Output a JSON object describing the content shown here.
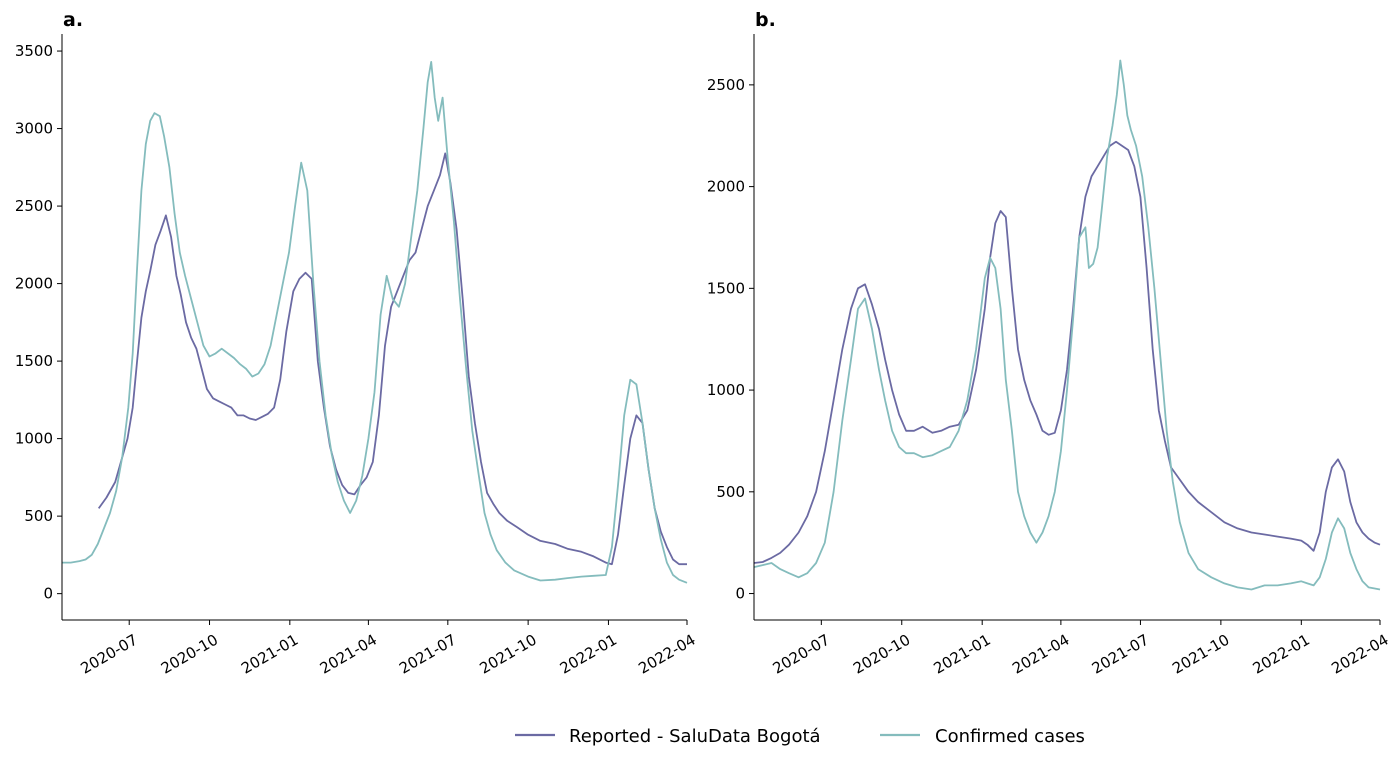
{
  "legend": {
    "placement": "bottom-center",
    "entries": [
      {
        "label": "Reported - SaluData Bogotá",
        "color": "#6b6aa3"
      },
      {
        "label": "Confirmed cases",
        "color": "#84bcbd"
      }
    ]
  },
  "chart_data": [
    {
      "type": "line",
      "panel_label": "a.",
      "x_type": "date",
      "xlim": [
        "2020-04-15",
        "2022-04-01"
      ],
      "ylim": [
        -170,
        3610
      ],
      "x_ticks": [
        "2020-07",
        "2020-10",
        "2021-01",
        "2021-04",
        "2021-07",
        "2021-10",
        "2022-01",
        "2022-04"
      ],
      "y_ticks": [
        0,
        500,
        1000,
        1500,
        2000,
        2500,
        3000,
        3500
      ],
      "grid": false,
      "series": [
        {
          "name": "Reported - SaluData Bogotá",
          "color": "#6b6aa3",
          "x": [
            "2020-05-27",
            "2020-06-05",
            "2020-06-15",
            "2020-06-22",
            "2020-06-29",
            "2020-07-05",
            "2020-07-10",
            "2020-07-15",
            "2020-07-20",
            "2020-07-25",
            "2020-07-31",
            "2020-08-06",
            "2020-08-12",
            "2020-08-18",
            "2020-08-24",
            "2020-08-29",
            "2020-09-04",
            "2020-09-10",
            "2020-09-16",
            "2020-09-22",
            "2020-09-28",
            "2020-10-05",
            "2020-10-12",
            "2020-10-19",
            "2020-10-26",
            "2020-11-02",
            "2020-11-09",
            "2020-11-16",
            "2020-11-23",
            "2020-11-30",
            "2020-12-07",
            "2020-12-14",
            "2020-12-21",
            "2020-12-28",
            "2021-01-05",
            "2021-01-12",
            "2021-01-19",
            "2021-01-26",
            "2021-02-02",
            "2021-02-09",
            "2021-02-16",
            "2021-02-23",
            "2021-03-02",
            "2021-03-09",
            "2021-03-16",
            "2021-03-23",
            "2021-03-30",
            "2021-04-06",
            "2021-04-13",
            "2021-04-20",
            "2021-04-27",
            "2021-05-04",
            "2021-05-11",
            "2021-05-18",
            "2021-05-25",
            "2021-06-01",
            "2021-06-08",
            "2021-06-15",
            "2021-06-22",
            "2021-06-28",
            "2021-07-04",
            "2021-07-11",
            "2021-07-18",
            "2021-07-25",
            "2021-08-01",
            "2021-08-08",
            "2021-08-15",
            "2021-08-22",
            "2021-08-29",
            "2021-09-07",
            "2021-09-18",
            "2021-10-01",
            "2021-10-15",
            "2021-11-01",
            "2021-11-15",
            "2021-12-01",
            "2021-12-15",
            "2021-12-29",
            "2022-01-05",
            "2022-01-12",
            "2022-01-19",
            "2022-01-26",
            "2022-02-02",
            "2022-02-09",
            "2022-02-16",
            "2022-02-23",
            "2022-03-02",
            "2022-03-09",
            "2022-03-16",
            "2022-03-23",
            "2022-04-01"
          ],
          "y": [
            550,
            620,
            720,
            860,
            1000,
            1200,
            1500,
            1780,
            1950,
            2080,
            2250,
            2340,
            2440,
            2300,
            2050,
            1930,
            1750,
            1650,
            1580,
            1450,
            1320,
            1260,
            1240,
            1220,
            1200,
            1150,
            1150,
            1130,
            1120,
            1140,
            1160,
            1200,
            1380,
            1690,
            1950,
            2030,
            2070,
            2030,
            1500,
            1200,
            950,
            800,
            700,
            650,
            640,
            700,
            750,
            850,
            1150,
            1600,
            1850,
            1950,
            2050,
            2150,
            2200,
            2350,
            2500,
            2600,
            2700,
            2840,
            2650,
            2350,
            1900,
            1400,
            1100,
            850,
            650,
            580,
            520,
            470,
            430,
            380,
            340,
            320,
            290,
            270,
            240,
            200,
            190,
            380,
            700,
            1000,
            1150,
            1100,
            800,
            550,
            400,
            300,
            220,
            190,
            190
          ]
        },
        {
          "name": "Confirmed cases",
          "color": "#84bcbd",
          "x": [
            "2020-04-15",
            "2020-04-25",
            "2020-05-05",
            "2020-05-12",
            "2020-05-19",
            "2020-05-26",
            "2020-06-02",
            "2020-06-09",
            "2020-06-16",
            "2020-06-23",
            "2020-06-30",
            "2020-07-05",
            "2020-07-10",
            "2020-07-15",
            "2020-07-20",
            "2020-07-25",
            "2020-07-30",
            "2020-08-05",
            "2020-08-10",
            "2020-08-16",
            "2020-08-22",
            "2020-08-28",
            "2020-09-03",
            "2020-09-10",
            "2020-09-17",
            "2020-09-24",
            "2020-10-01",
            "2020-10-08",
            "2020-10-15",
            "2020-10-22",
            "2020-10-29",
            "2020-11-05",
            "2020-11-12",
            "2020-11-19",
            "2020-11-26",
            "2020-12-03",
            "2020-12-10",
            "2020-12-17",
            "2020-12-24",
            "2020-12-31",
            "2021-01-07",
            "2021-01-14",
            "2021-01-21",
            "2021-01-28",
            "2021-02-04",
            "2021-02-11",
            "2021-02-18",
            "2021-02-25",
            "2021-03-04",
            "2021-03-11",
            "2021-03-18",
            "2021-03-25",
            "2021-04-01",
            "2021-04-08",
            "2021-04-15",
            "2021-04-22",
            "2021-04-29",
            "2021-05-06",
            "2021-05-13",
            "2021-05-20",
            "2021-05-27",
            "2021-06-03",
            "2021-06-08",
            "2021-06-12",
            "2021-06-16",
            "2021-06-20",
            "2021-06-25",
            "2021-07-01",
            "2021-07-08",
            "2021-07-15",
            "2021-07-22",
            "2021-07-29",
            "2021-08-05",
            "2021-08-12",
            "2021-08-19",
            "2021-08-26",
            "2021-09-05",
            "2021-09-15",
            "2021-10-01",
            "2021-10-15",
            "2021-11-01",
            "2021-11-15",
            "2021-12-01",
            "2021-12-15",
            "2021-12-29",
            "2022-01-05",
            "2022-01-12",
            "2022-01-19",
            "2022-01-26",
            "2022-02-02",
            "2022-02-09",
            "2022-02-16",
            "2022-02-23",
            "2022-03-02",
            "2022-03-09",
            "2022-03-16",
            "2022-03-23",
            "2022-04-01"
          ],
          "y": [
            200,
            200,
            210,
            220,
            250,
            320,
            420,
            520,
            660,
            880,
            1200,
            1550,
            2100,
            2600,
            2900,
            3050,
            3100,
            3080,
            2950,
            2750,
            2450,
            2200,
            2050,
            1900,
            1750,
            1600,
            1530,
            1550,
            1580,
            1550,
            1520,
            1480,
            1450,
            1400,
            1420,
            1480,
            1600,
            1800,
            2000,
            2200,
            2500,
            2780,
            2600,
            2000,
            1500,
            1150,
            900,
            720,
            600,
            520,
            600,
            760,
            1000,
            1300,
            1800,
            2050,
            1900,
            1850,
            2000,
            2300,
            2600,
            3000,
            3300,
            3430,
            3200,
            3050,
            3200,
            2800,
            2400,
            1900,
            1450,
            1050,
            780,
            520,
            380,
            280,
            200,
            150,
            110,
            85,
            90,
            100,
            110,
            115,
            120,
            300,
            700,
            1150,
            1380,
            1350,
            1100,
            800,
            550,
            350,
            200,
            120,
            90,
            70
          ]
        }
      ]
    },
    {
      "type": "line",
      "panel_label": "b.",
      "x_type": "date",
      "xlim": [
        "2020-04-15",
        "2022-04-01"
      ],
      "ylim": [
        -130,
        2750
      ],
      "x_ticks": [
        "2020-07",
        "2020-10",
        "2021-01",
        "2021-04",
        "2021-07",
        "2021-10",
        "2022-01",
        "2022-04"
      ],
      "y_ticks": [
        0,
        500,
        1000,
        1500,
        2000,
        2500
      ],
      "grid": false,
      "series": [
        {
          "name": "Reported - SaluData Bogotá",
          "color": "#6b6aa3",
          "x": [
            "2020-04-15",
            "2020-04-25",
            "2020-05-05",
            "2020-05-15",
            "2020-05-25",
            "2020-06-05",
            "2020-06-15",
            "2020-06-25",
            "2020-07-05",
            "2020-07-15",
            "2020-07-25",
            "2020-08-04",
            "2020-08-12",
            "2020-08-20",
            "2020-08-28",
            "2020-09-05",
            "2020-09-12",
            "2020-09-20",
            "2020-09-28",
            "2020-10-06",
            "2020-10-15",
            "2020-10-25",
            "2020-11-05",
            "2020-11-15",
            "2020-11-25",
            "2020-12-05",
            "2020-12-15",
            "2020-12-25",
            "2021-01-04",
            "2021-01-10",
            "2021-01-16",
            "2021-01-22",
            "2021-01-28",
            "2021-02-04",
            "2021-02-11",
            "2021-02-18",
            "2021-02-25",
            "2021-03-04",
            "2021-03-11",
            "2021-03-18",
            "2021-03-25",
            "2021-04-01",
            "2021-04-08",
            "2021-04-15",
            "2021-04-22",
            "2021-04-29",
            "2021-05-06",
            "2021-05-13",
            "2021-05-20",
            "2021-05-27",
            "2021-06-03",
            "2021-06-10",
            "2021-06-17",
            "2021-06-24",
            "2021-07-01",
            "2021-07-08",
            "2021-07-15",
            "2021-07-22",
            "2021-07-29",
            "2021-08-05",
            "2021-08-15",
            "2021-08-25",
            "2021-09-05",
            "2021-09-20",
            "2021-10-05",
            "2021-10-20",
            "2021-11-05",
            "2021-11-20",
            "2021-12-05",
            "2021-12-20",
            "2022-01-01",
            "2022-01-08",
            "2022-01-15",
            "2022-01-22",
            "2022-01-29",
            "2022-02-05",
            "2022-02-12",
            "2022-02-19",
            "2022-02-26",
            "2022-03-05",
            "2022-03-12",
            "2022-03-19",
            "2022-03-26",
            "2022-04-01"
          ],
          "y": [
            150,
            155,
            175,
            200,
            240,
            300,
            380,
            500,
            700,
            950,
            1200,
            1400,
            1500,
            1520,
            1420,
            1300,
            1150,
            1000,
            880,
            800,
            800,
            820,
            790,
            800,
            820,
            830,
            900,
            1100,
            1400,
            1650,
            1820,
            1880,
            1850,
            1500,
            1200,
            1050,
            950,
            880,
            800,
            780,
            790,
            900,
            1100,
            1400,
            1750,
            1950,
            2050,
            2100,
            2150,
            2200,
            2220,
            2200,
            2180,
            2100,
            1950,
            1600,
            1200,
            900,
            750,
            620,
            560,
            500,
            450,
            400,
            350,
            320,
            300,
            290,
            280,
            270,
            260,
            240,
            210,
            300,
            500,
            620,
            660,
            600,
            450,
            350,
            300,
            270,
            250,
            240
          ]
        },
        {
          "name": "Confirmed cases",
          "color": "#84bcbd",
          "x": [
            "2020-04-15",
            "2020-04-25",
            "2020-05-05",
            "2020-05-15",
            "2020-05-25",
            "2020-06-05",
            "2020-06-15",
            "2020-06-25",
            "2020-07-05",
            "2020-07-15",
            "2020-07-25",
            "2020-08-04",
            "2020-08-12",
            "2020-08-20",
            "2020-08-28",
            "2020-09-05",
            "2020-09-12",
            "2020-09-20",
            "2020-09-28",
            "2020-10-06",
            "2020-10-15",
            "2020-10-25",
            "2020-11-05",
            "2020-11-15",
            "2020-11-25",
            "2020-12-05",
            "2020-12-15",
            "2020-12-25",
            "2021-01-04",
            "2021-01-10",
            "2021-01-16",
            "2021-01-22",
            "2021-01-28",
            "2021-02-04",
            "2021-02-11",
            "2021-02-18",
            "2021-02-25",
            "2021-03-04",
            "2021-03-11",
            "2021-03-18",
            "2021-03-25",
            "2021-04-01",
            "2021-04-08",
            "2021-04-15",
            "2021-04-22",
            "2021-04-29",
            "2021-05-03",
            "2021-05-08",
            "2021-05-13",
            "2021-05-18",
            "2021-05-24",
            "2021-05-30",
            "2021-06-04",
            "2021-06-08",
            "2021-06-12",
            "2021-06-16",
            "2021-06-20",
            "2021-06-26",
            "2021-07-03",
            "2021-07-10",
            "2021-07-17",
            "2021-07-24",
            "2021-07-31",
            "2021-08-07",
            "2021-08-15",
            "2021-08-25",
            "2021-09-05",
            "2021-09-20",
            "2021-10-05",
            "2021-10-20",
            "2021-11-05",
            "2021-11-20",
            "2021-12-05",
            "2021-12-20",
            "2022-01-01",
            "2022-01-08",
            "2022-01-15",
            "2022-01-22",
            "2022-01-29",
            "2022-02-05",
            "2022-02-12",
            "2022-02-19",
            "2022-02-26",
            "2022-03-05",
            "2022-03-12",
            "2022-03-19",
            "2022-03-26",
            "2022-04-01"
          ],
          "y": [
            130,
            140,
            150,
            120,
            100,
            80,
            100,
            150,
            250,
            500,
            850,
            1150,
            1400,
            1450,
            1300,
            1100,
            950,
            800,
            720,
            690,
            690,
            670,
            680,
            700,
            720,
            800,
            950,
            1200,
            1550,
            1650,
            1600,
            1400,
            1050,
            800,
            500,
            380,
            300,
            250,
            300,
            380,
            500,
            700,
            1000,
            1350,
            1750,
            1800,
            1600,
            1620,
            1700,
            1900,
            2150,
            2300,
            2450,
            2620,
            2500,
            2350,
            2280,
            2200,
            2050,
            1800,
            1500,
            1150,
            800,
            550,
            350,
            200,
            120,
            80,
            50,
            30,
            20,
            40,
            40,
            50,
            60,
            50,
            40,
            80,
            170,
            300,
            370,
            320,
            200,
            120,
            60,
            30,
            25,
            20
          ]
        }
      ]
    }
  ]
}
